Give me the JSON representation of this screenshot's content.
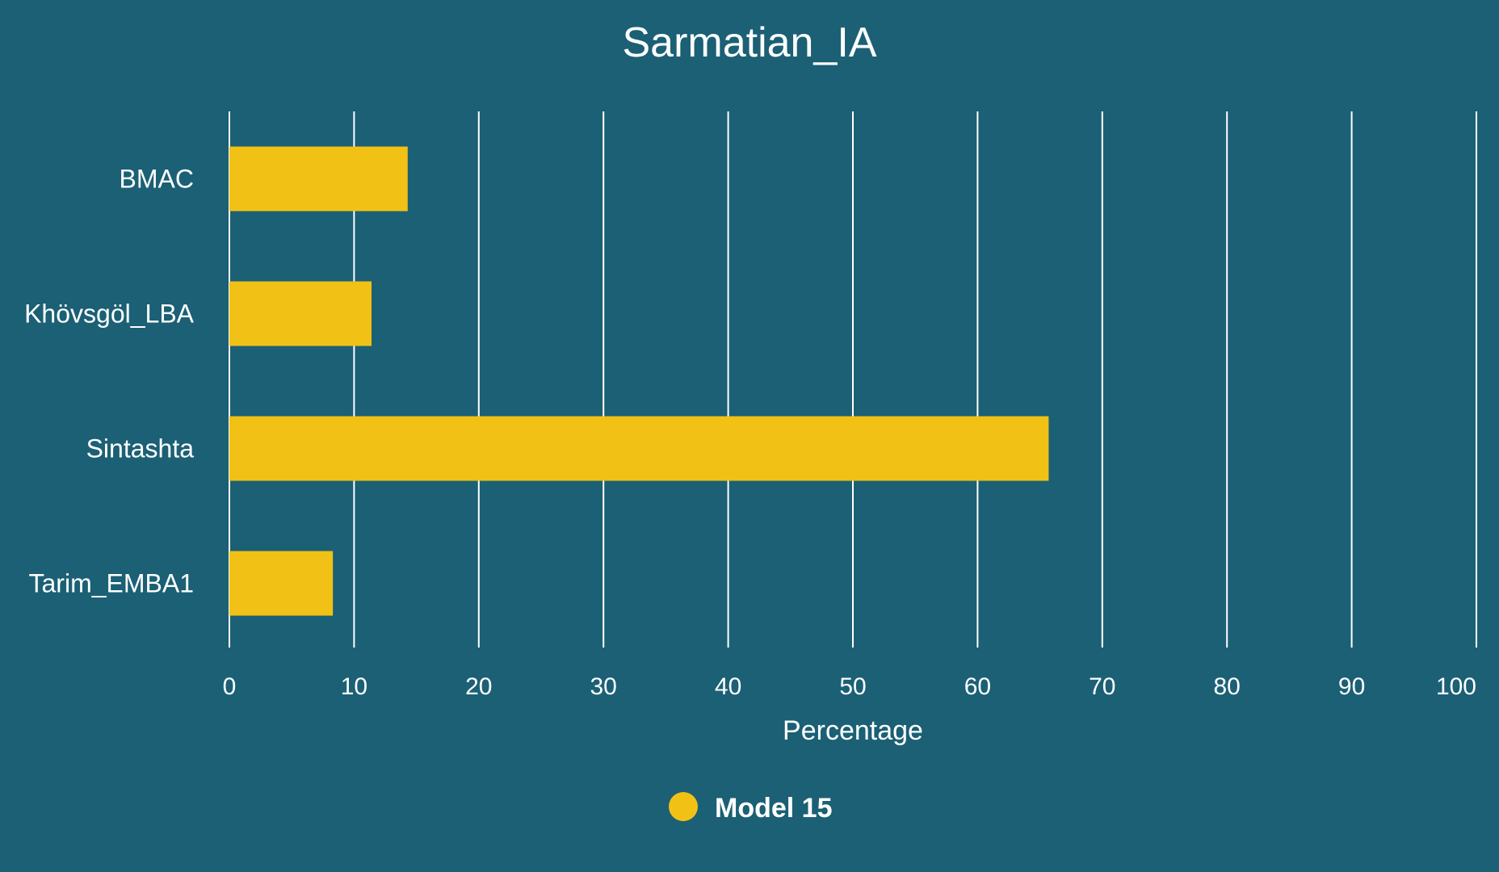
{
  "colors": {
    "background": "#1b6075",
    "bar": "#f1c115",
    "grid": "#ffffff",
    "text": "#ffffff"
  },
  "chart_data": {
    "type": "bar",
    "orientation": "horizontal",
    "title": "Sarmatian_IA",
    "xlabel": "Percentage",
    "ylabel": "",
    "xlim": [
      0,
      100
    ],
    "x_ticks": [
      0,
      10,
      20,
      30,
      40,
      50,
      60,
      70,
      80,
      90,
      100
    ],
    "grid": true,
    "legend_position": "bottom",
    "categories": [
      "BMAC",
      "Khövsgöl_LBA",
      "Sintashta",
      "Tarim_EMBA1"
    ],
    "series": [
      {
        "name": "Model 15",
        "color": "#f1c115",
        "values": [
          14.3,
          11.4,
          65.7,
          8.3
        ]
      }
    ]
  }
}
